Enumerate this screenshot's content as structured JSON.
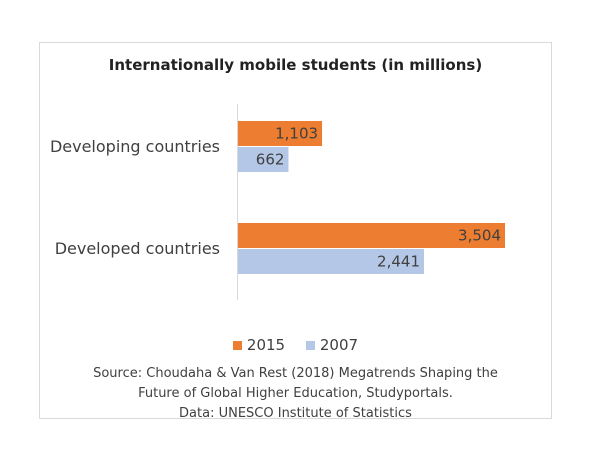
{
  "chart_data": {
    "type": "bar",
    "orientation": "horizontal",
    "title": "Internationally mobile students (in millions)",
    "categories": [
      "Developing countries",
      "Developed countries"
    ],
    "series": [
      {
        "name": "2015",
        "values": [
          1103,
          3504
        ],
        "labels": [
          "1,103",
          "3,504"
        ],
        "color": "#ed7d31"
      },
      {
        "name": "2007",
        "values": [
          662,
          2441
        ],
        "labels": [
          "662",
          "2,441"
        ],
        "color": "#b4c7e7"
      }
    ],
    "xlim": [
      0,
      3600
    ],
    "xlabel": "",
    "ylabel": "",
    "grid": false,
    "legend": "bottom"
  },
  "source": {
    "lines": [
      "Source: Choudaha & Van Rest (2018) Megatrends Shaping the",
      "Future of Global Higher Education, Studyportals.",
      "Data: UNESCO Institute of Statistics"
    ]
  }
}
